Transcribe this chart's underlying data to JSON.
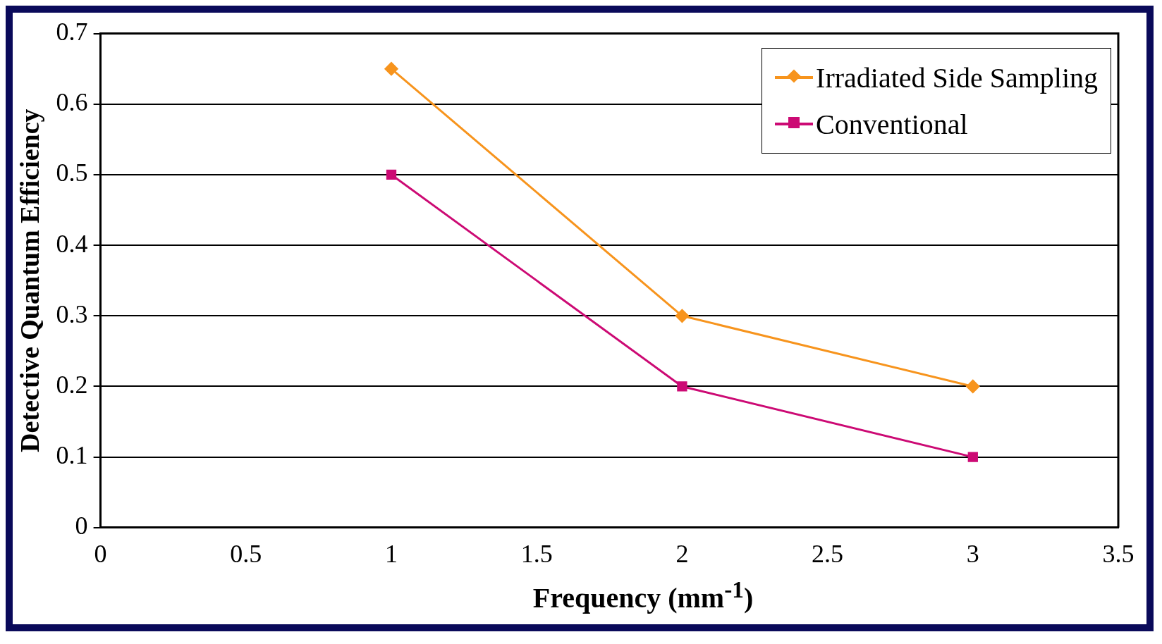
{
  "chart_data": {
    "type": "line",
    "xlabel": "Frequency (mm$^{-1}$)",
    "ylabel": "Detective Quantum Efficiency",
    "x": [
      1,
      2,
      3
    ],
    "series": [
      {
        "name": "Irradiated Side Sampling",
        "color": "#f7941d",
        "values": [
          0.65,
          0.3,
          0.2
        ],
        "marker": "diamond"
      },
      {
        "name": "Conventional",
        "color": "#cc0a74",
        "values": [
          0.5,
          0.2,
          0.1
        ],
        "marker": "square"
      }
    ],
    "xlim": [
      0,
      3.5
    ],
    "xticks": [
      0,
      0.5,
      1,
      1.5,
      2,
      2.5,
      3,
      3.5
    ],
    "ylim": [
      0,
      0.7
    ],
    "yticks": [
      0,
      0.1,
      0.2,
      0.3,
      0.4,
      0.5,
      0.6,
      0.7
    ],
    "grid": "y",
    "legend": "top right"
  }
}
